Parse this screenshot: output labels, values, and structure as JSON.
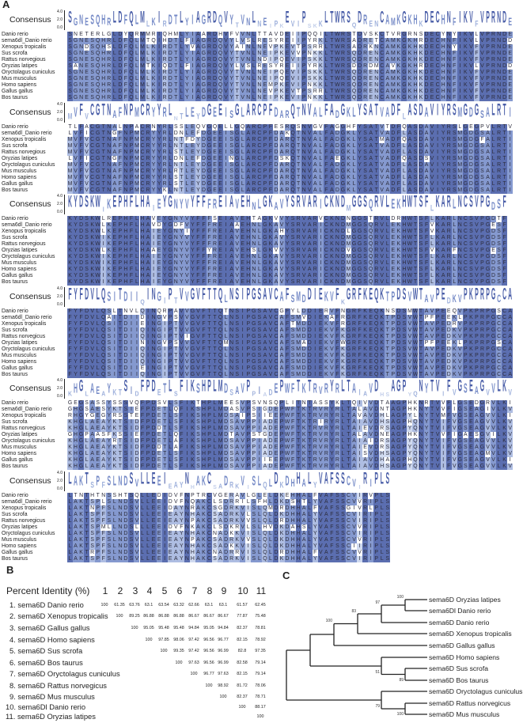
{
  "panels": {
    "a": "A",
    "b": "B",
    "c": "C"
  },
  "colors": {
    "conserved_full": "#5b6eb0",
    "conserved_high": "#8599cf",
    "conserved_mid": "#aebde2",
    "conserved_low": "#d0daf0",
    "mismatch": "#ffffff"
  },
  "alignment": {
    "consensus_label": "Consensus",
    "logo_ticks": [
      "4.0",
      "2.0",
      "0.0"
    ],
    "blocks": [
      {
        "names": [
          "Danio rerio",
          "sema6dl_Danio rerio",
          "Xenopus tropicalis",
          "Sus scrofa",
          "Rattus norvegious",
          "Oryzias latipes",
          "Oryctolagus cuniculus",
          "Mus musculus",
          "Homo sapiens",
          "Gallus gallus",
          "Bos taurus"
        ],
        "consensus": "SGNESQHRLDFQLMLKIRDTLYIAGRDQVYTVNLNEIPKEVIPSKKLTWRSQDRENCAMKGKHKDECHNFIKVFVPRNDE",
        "rows": [
          "SNETERLGLDYQRMMRIQHMLYIAARDHVFVVNLTTAVDEIIPQQILTWRSTDVSKCTVRGRNSDECYNYIKVLVPRNDE",
          "SGNESQHRLDFQLMTQIHDTLFIAGRDQVYLVSLRESYREIIPYRKLTWRSADRETCAMKGKHRDECHNFIKVLVPRNDD",
          "SGNDSQHSLDFQLMLKIRDTLYVAGRDQVYAINLNEVPKEVTPSRRLTWRSADRKNCAMKGKHKDECHNYIKVFVPRNDE",
          "SGNESQHRLDFQLMLKIRDTLYIAGRDQVYTVNLNEIPKEVVPNKKLTWRSQDRENCAMKGKHKDECHNFIKVFVPRNDE",
          "SGNESQHRLDFQLMLKIRDTLYIAGRDQVYTVNLNDIPQEVIPSKKLTWRSQDRENCAMKGKHKDECHNFIKVFVPRNDE",
          "SANESQHRLDFQLMTKIQDTLFIAGRDQVYLVSLRESYREIIPYRKLTWRSDDRDMCAVKGKHRDECHNFIKVLVPRNDD",
          "SGNESQHRLDFQLMLKIRDTLYIAGRDQVYTVNLNEIPQEVIPSKKLTWRSQDRENCAMKGKHKDECHNFIKVFVPRNDE",
          "SGNESQHRLDFQLMLKIRDTLYIAGRDQVYTVNLNEIPQEVIPSKKLTWRSQDRENCAMKGKHKDECHNFIKVFVPRNDE",
          "SGNESQHRLDFQLMLKIRDTLYIAGRDQVYTVNLNEMPKEVIPNKKLTWRSQDRENCAMKGKHKDECHNFIKVFVPRNDE",
          "SGNESQHRLDFQLMLKIRDTLYIAGRDQVYTVNLNEVPKEVTPSRRLTWRSQDRENCAMKGKHKDECHNFIKVFVPRNDE",
          "SGNESQHRLDFQLMLKIRDTLYIAGRDQVYTVNLNEIPKEVIPNKKLTWRSQDRENCAMKGKHKDECHNFIKVFVPRNDE"
        ]
      },
      {
        "names": [
          "Danio rerio",
          "sema6dl_Danio rerio",
          "Xenopus tropicalis",
          "Sus scrofa",
          "Rattus norvegious",
          "Oryzias latipes",
          "Oryctolagus cuniculus",
          "Mus musculus",
          "Homo sapiens",
          "Gallus gallus",
          "Bos taurus"
        ],
        "consensus": "MVFVCGTNAFNPMCRYYRLNTLEYDGEEISGLARCPFDARQTNVALFADGKLYSATVADFLASDAVIYRSMGDGSALRTI",
        "rows": [
          "TLFACGTNALNPACRNYRLSSLEQVGQELLGQARCPFESRQSNVGVFAGGHFYSATVTDFQASDAVIYRSLGEGPVLRTV",
          "LVFICGTNGFNPMCRYYRLDNLEFDGEEISGLARCPFDAKQTNVALFADGKLYSATVADFLASDAVIYRSMGDGSALRTI",
          "MVFVCGTNAFNPMCRYYRLNTFDYDGEEISGLARCPFDARQTNVALFADGKLYSATMADFQASDAVIYRSMGDGFALRTI",
          "MVFVCGTNAFNPMCRYYRLNTLEYDGEEISGLARCPFDARQTNVALFADGKLYSATVADFLASDAVIYRSMGDGSALRTI",
          "MVFVCGTNAFNPMCRYYRLSTLEYDGEEISGLARCPFDARQTNVALFADGKLYSATVADFLASDAVIYRSMGDGSALRTI",
          "LVFICGTNGFNPMCRYYRLDNLEFDGEEINGLARCPFDSKQTNVALFAEGKLYSATVADFQASDSVIYRSMGDGSALRTI",
          "MVFVCGTNAFNPMCRYYRLNTLEYDGEEISGLARCPFDARQTNVALFADGKLYSATVADFLASDAVIYRSMGDGSALRTI",
          "MVFVCGTNAFNPMCRYYRLRTLEYDGEEISGLARCPFDARQTNVALFADGKLYSATVADFLASDAVIYRSMGDGSALRTI",
          "MVFVCGTNAFNPMCRYYRLSTLEYDGEEISGLARCPFDARQTNVALFADGKLYSATVADFLASDAVIYRSMGDGSALRTI",
          "MVFVCGTNAFNPMCRYYRLSTLEYDGEEISGLARCPFDARQTNVALFADGKLYSATVADFLASDAVIYRSMGDGSALRTI",
          "MVFVCGTNAFNPMCRYYKLNTLEYDGEEISGLARCPFDARQTNVALFADGKLYSATVADFLASDAVIYRSMGDGSALRTI"
        ]
      },
      {
        "names": [
          "Danio rerio",
          "sema6dl_Danio rerio",
          "Xenopus tropicalis",
          "Sus scrofa",
          "Rattus norvegious",
          "Oryzias latipes",
          "Oryctolagus cuniculus",
          "Mus musculus",
          "Homo sapiens",
          "Gallus gallus",
          "Bos taurus"
        ],
        "consensus": "KYDSKWIKEPHFLHAIEYGNYVYFFFREIAVEHNLGKAVYSRVARICKNDMGGSQRVLEKHWTSFLKARLNCSVPGDSF",
        "rows": [
          "KYDSKWLREPHFLHAVEYGNYVYFFFSEIAVEHTAGKVVYSRVARVCKNDNGGSTRVLDRHWTSFLKARLNCSVPGDTF",
          "KYDSKWLKEPHFLHAVDYGDFVYFFFREIAAEHNLGKAVYSRVARICKNDMGGSQRVLEKHWTSFVKARLNCSVPGESF",
          "KYDSKWLKEPHFLHAIEYGNYIYFFFREIAVEHNLGKAHYSRVARICKNDLGGSQRVLEKHWTSFVKARLNCSVPGDSF",
          "KYDSKWIKEPHFLHAIEYGNYVYFFFREIAVEHNLGKAVYSRVARICKNDMGGSQRVLEKHWTSFLKARLNCSVPGDSF",
          "KYDSKWIKEPHFLHAIEYGNYVYFFFREIAVEHNLGKAVYSRVARICKNDMGGSQRVLEKHWTSFLKARLNCSVPGDSF",
          "KYDSKWLKEPHFLHAAEYGNYVYFFYREIAVEHSLGKVVYSRVARICKNDVGGSQRVLEKHWTSFVKARFNCSVPGESF",
          "KYDSKWIKEPHFLHAIEYGNYVYFFFREIAVEHNLGKAVYSRVARICKNDMGGSQRVLEKHWTSFLKARLNCSVPGDSF",
          "KYDSKWIKEPHFLHAIEYGNYVYFFFREIAVEHNLGKAVYSRVARICKNDMGGSQRVLEKHWTSFLKARLNCSVPGDSF",
          "KYDSKWIKEPHFLHAIEYGNYVYFFFREIAVEHNLGKAVYSRVARICKNDMGGSQRVLEKHWTSFLKARLNCSVPGDSF",
          "KYDSKWIKEPHFLHAIEYGNYVYFFFREIAVEHNLGKAVYSRVARICKNDMGGSQRVLEKHWTSFLKARLNCSVPGDSF",
          "KYDSKWIKEPHFLHAIEYGNYVYFFFREIAVEHNLGKAVYSRVARICKNDMGGSQRVLEKHWTSFLKARLNCSVPGDSF"
        ]
      },
      {
        "names": [
          "Danio rerio",
          "sema6dl_Danio rerio",
          "Xenopus tropicalis",
          "Sus scrofa",
          "Rattus norvegicus",
          "Oryzias latipes",
          "Oryctolagus cuniculus",
          "Mus musculus",
          "Homo sapiens",
          "Gallus gallus",
          "Bos taurus"
        ],
        "consensus": "FYFDVLQSITDIIQINGIPTVVGVFTTQLNSIPGSAVCAFSMDDIEKVFKGRFKEQKTPDSVWTAVPEDKVPKPRPGCCA",
        "rows": [
          "FYFDVLQSLTNVLQINQRPAVVGVFTTQTNSIPGSAVCGFYLDDIERVFNGRFKEQKNSDSMWTAVPEEQVPKPRPGSCA",
          "FYFDVLQAITDIIDINGVPSVVGVFTTQLNSIPGSAVCAFSMVDIEKAFRGRFKEQKTPDSVWTPFPEEKLPKPRPGCCA",
          "FYFDVLQSITDIIEINGIPTVVGVFTTQLNSIPGSAVCAFTMDDIEKVFRGRFKEQKTPDSVWTAVPEDRVPKPRPGCCA",
          "FYFDVLQSITDIIQINGIPTVVGVFTTQLNSIPGSAVCAFSMDDIEKVFKGRFKEQKTPDSVWTAVPEDKVPKPRPGCCA",
          "FYFDVLQSITDIIQINGIPTVIGVFTTQLNSIPGSAVCAFSMDDIEKVFKGRFKEQKTPDSVWTAVPEDKVPKPRPGCCA",
          "FYFDVLQSITDIININGVPSVVGVFTTQMNSIPGSAVCAFSMADIEKVFWGRFKEQKTPDSVWTPFPEEKLPKPRPGSCA",
          "FYFDVLQSITDIIQINGIPTVVGVFTTQLNSIPGSAVCAFSMDDIEKVFKGRFKEQKTPDSVWTAVPEDKVPKPRPGCCA",
          "FYFDVLQSITDIIQINGIPTVVGVFTTQLNSIPGSAVCAFSMDDIEKVFKGRFKEQKTPDSVWTAVPEDKVPKPRPGCCA",
          "FYFDVLQSITDIIQINGIPTVVGVFTTQLNSIPGSAVCAFSMDDIEKVFKGRFKEQKTPDSVWTAVPEDKVPKPRPGCCA",
          "FYFDVLQSITDIIEINGIPTVVGVFTTQLNSIPGSAVCAFSMDDIEKVFKGRFKEQKTPDSVWTAVPEDKVPKPRPGCCA",
          "FYFDVLQSITDIIQINGIPTVVGVFTTQLNSIPGSAVCAFSMDDIEKVFKGRFKEQKTPDSVWTAVPEDKVPKPRPGCCA"
        ]
      },
      {
        "names": [
          "Danio rerio",
          "sema6dl_Danio rerio",
          "Xenopus tropicalis",
          "Sus scrofa",
          "Rattus norvegicus",
          "Oryzias latipes",
          "Oryctolagus cuniculus",
          "Mus musculus",
          "Homo sapiens",
          "Gallus gallus",
          "Bos taurus"
        ],
        "consensus": "KHGLAEAYKTSIDFPDETLSFIKSHPLMDSAVPPIADEPWFTKTRVRYRLTAIAVDHSAGPYQNYTVIFVGSEAGVVLKV",
        "rows": [
          "GEGSASSYSSSVQFPDSVLSFIKTHPLMEESVPSVNSQPLITNTASSYKLTQIVVDTAAGPHKNRTVVFLGSEDGRVLKI",
          "GHGSAESYKTSIEFPDETLQFIKSHPLMDASVPSIGDEPWFTKTRVRYRLTALAVDNTAGPHKNYTVVFIGSEAGIVLKV",
          "RHGYGEGYRSSTEFPDETLSFIKSHPLMDSAIPSIIEEPWFTKTRVRYRLTAVAVDHLAGPYLNYTVMFVGSEAGVVLKI",
          "KHGLAEAYKTSIDFPDETLSFIKSHPLMDSAVPPIADEPWFTKTRIRYRLTAIAVDHSAGPHQNYTVIFVGSEAGVVLKV",
          "KHGLAEAYKTSIDFPDDTLSFIKSHPLMDSAVPPIADEPWFTKTRVRYRLTAIEVDRSAGPYQNYTVIFVGSEAGVVLKV",
          "GHGPAASFKSSIEFPDETLQFIKSHPLMDTAVPSTGDEPWFTKTRVRYRLTALAVDNEAGPHKNYTVVFIGAESGVILKV",
          "KHGLAEAYRTSIDFPDETLAFIKSHPLMDSAVPPIADEPWFTKTRVRYRLTAIAIDRSAGPYQNYTVIFVGSEAGVVLKV",
          "KHGLAEAYKTSIDFPDDTLAFIKSHPLMDSAVPPIADEPWFTKTRVRYRLTAIEVDRSAGPYQNYTVIFVGSEAGVVLKV",
          "KHGLAEAYKTSIDFPDETLSFIKSHPLMDSAVPPIADEPWFTKTRVRYRLTAISVDHSAGPYQNYTVIFVGSEAGMVLKV",
          "KHGLAEAYKTSIDFPDETLSFIKSHPLMDSAVPPIIEEPWFTKTRVRYRLTAIAVDHAAGPHQNYTVIFVGSEAGVVLKI",
          "KHGLAEAYKTSIDFPDETLSFIKSHPLMDSAVPPIADEPWFTKTRVRYRLTAIAVDHSAGPYQNYTVIFVGSEAGVVLKV"
        ]
      },
      {
        "names": [
          "Danio rerio",
          "sema6dl_Danio rerio",
          "Xenopus tropicalis",
          "Sus scrofa",
          "Rattus norvegicus",
          "Oryzias latipes",
          "Oryctolagus cuniculus",
          "Mus musculus",
          "Homo sapiens",
          "Gallus gallus",
          "Bos taurus"
        ],
        "consensus": "LAKTSPFSLNDSVLLEEIEAYNHAKCSADRKVISLQLDKDHHALYVAFSSCVIRIPLS",
        "rows": [
          "LTNTHTNSSHTSQLLEDIDVFNPTRCVGERAVLGLELDKEHHALFVAFSSCVIRVPLS",
          "LAKTSPLSLNDSVLLEEIDVFNQAKCLSDRRILSFHLDKDSHTLYVAFSSCVVRIPLS",
          "LAKTNPFSLNDSVLLEEIDAYNRAKCSGDRKVISLQMDRDHHALFVAFSSGIVRLPLS",
          "LAKTSPFSLNDSVLLEEIEAYNHAKCSADRKVLSLQLDKDHHALYVAFSSCVIRIPLS",
          "LAKTSPFSLNDSVLLEEIEAYNPAKCSADRKVVSLQLDRDHHALYVAFSSCVIRIPLS",
          "LAKTSPMLLNDSLLLEEIDVFNKAKCLSDKRVLSLHVDKDAHSLYVAFSSCVVRIPLS",
          "LAKTSPFSLNDSVLLEEIEAYNHAKCNADKKVISLQLDKDHHALYVAFSSCVIRIPLS",
          "LAKTSPFSLNDSVLLEEIEAYNPAKCSADRKVVSLQLDKDHHALYVAFSSCVVRIPLS",
          "LAKTSPFSLNDSVLLEEIEAYNHAKCSADKKVISLQLDKDHHALYVAFSSCIIRIPLS",
          "LAKTRPFSLNDSVLLEEIEAYNHAKCNADRRVISLQLDRDHHALFVAFSSCVVRIPLS",
          "LAKTSPFSLNDSVLLEEIEAYNHAKCSADRKVISLQLDKDHHALYVAFSSCVIRIPLS"
        ]
      }
    ]
  },
  "identity_table": {
    "title": "Percent Identity (%)",
    "columns": [
      "1",
      "2",
      "3",
      "4",
      "5",
      "6",
      "7",
      "8",
      "9",
      "10",
      "11"
    ],
    "rows": [
      {
        "label": "1. sema6D Danio rerio",
        "values": [
          "100",
          "61.35",
          "63.76",
          "63.1",
          "63.54",
          "63.32",
          "62.66",
          "63.1",
          "63.1",
          "61.57",
          "62.45"
        ]
      },
      {
        "label": "2. sema6D Xenopus tropicalis",
        "values": [
          "100",
          "89.25",
          "86.88",
          "86.88",
          "86.88",
          "86.67",
          "86.67",
          "86.67",
          "77.87",
          "75.48"
        ]
      },
      {
        "label": "3. sema6D Gallus gallus",
        "values": [
          "100",
          "95.05",
          "95.48",
          "95.48",
          "94.84",
          "95.05",
          "94.84",
          "82.37",
          "78.81"
        ]
      },
      {
        "label": "4. sema6D Homo sapiens",
        "values": [
          "100",
          "97.85",
          "98.06",
          "97.42",
          "96.56",
          "96.77",
          "82.15",
          "78.92"
        ]
      },
      {
        "label": "5. sema6D Sus scrofa",
        "values": [
          "100",
          "99.35",
          "97.42",
          "96.56",
          "96.99",
          "82.8",
          "97.35"
        ]
      },
      {
        "label": "6. sema6D Bos taurus",
        "values": [
          "100",
          "97.63",
          "96.56",
          "96.99",
          "82.58",
          "79.14"
        ]
      },
      {
        "label": "7. sema6D Oryctolagus cuniculus",
        "values": [
          "100",
          "96.77",
          "97.63",
          "82.15",
          "79.14"
        ]
      },
      {
        "label": "8. sema6D Rattus norvegicus",
        "values": [
          "100",
          "98.92",
          "81.72",
          "78.06"
        ]
      },
      {
        "label": "9. sema6D Mus musculus",
        "values": [
          "100",
          "82.37",
          "78.71"
        ]
      },
      {
        "label": "10. sema6Dl Danio rerio",
        "values": [
          "100",
          "88.17"
        ]
      },
      {
        "label": "11. sema6D Oryzias latipes",
        "values": [
          "100"
        ]
      }
    ]
  },
  "tree": {
    "leaves": [
      "sema6D Oryzias latipes",
      "sema6Dl Danio rerio",
      "sema6D Danio rerio",
      "sema6D Xenopus tropicalis",
      "sema6D Gallus gallus",
      "sema6D Homo sapiens",
      "sema6D Sus scrofa",
      "sema6D Bos taurus",
      "sema6D Oryctolagus cuniculus",
      "sema6D Rattus norvegicus",
      "sema6D Mus musculus"
    ],
    "bootstrap": {
      "oryzias_sema6dl": "100",
      "fish": "97",
      "fish_xenopus": "83",
      "nonmammal": "100",
      "sus_bos": "89",
      "homo_sus_bos": "51",
      "rattus_mus": "100",
      "glires": "79"
    }
  }
}
